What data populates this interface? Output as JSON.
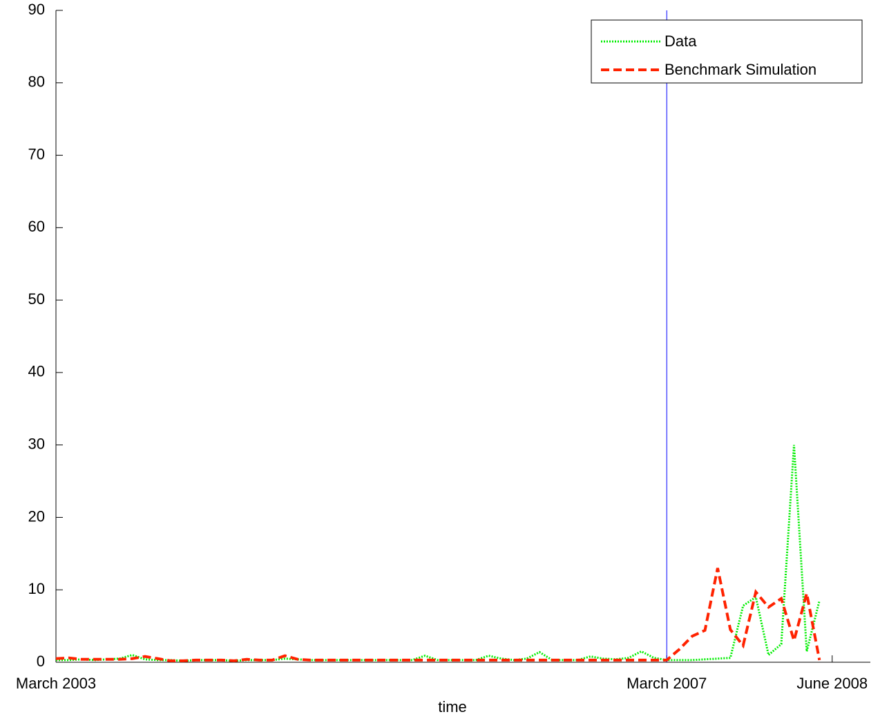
{
  "chart_data": {
    "type": "line",
    "x_label": "time",
    "x": [
      0,
      1,
      2,
      3,
      4,
      5,
      6,
      7,
      8,
      9,
      10,
      11,
      12,
      13,
      14,
      15,
      16,
      17,
      18,
      19,
      20,
      21,
      22,
      23,
      24,
      25,
      26,
      27,
      28,
      29,
      30,
      31,
      32,
      33,
      34,
      35,
      36,
      37,
      38,
      39,
      40,
      41,
      42,
      43,
      44,
      45,
      46,
      47,
      48,
      49,
      50,
      51,
      52,
      53,
      54,
      55,
      56,
      57,
      58,
      59,
      60
    ],
    "series": [
      {
        "name": "Data",
        "color": "#00ee00",
        "style": "dotted",
        "values": [
          0.3,
          0.3,
          0.4,
          0.3,
          0.4,
          0.5,
          1.0,
          0.4,
          0.3,
          0.3,
          0.2,
          0.3,
          0.3,
          0.3,
          0.2,
          0.3,
          0.3,
          0.3,
          0.5,
          0.4,
          0.3,
          0.3,
          0.3,
          0.3,
          0.3,
          0.3,
          0.3,
          0.3,
          0.3,
          0.9,
          0.3,
          0.3,
          0.3,
          0.3,
          0.9,
          0.5,
          0.3,
          0.5,
          1.4,
          0.3,
          0.3,
          0.3,
          0.8,
          0.5,
          0.4,
          0.6,
          1.5,
          0.6,
          0.3,
          0.3,
          0.3,
          0.4,
          0.5,
          0.6,
          7.8,
          9,
          1,
          2.5,
          30,
          1.5,
          8.5
        ]
      },
      {
        "name": "Benchmark Simulation",
        "color": "#ff2200",
        "style": "dashed",
        "values": [
          0.5,
          0.6,
          0.4,
          0.4,
          0.4,
          0.4,
          0.5,
          0.8,
          0.5,
          0.2,
          0.2,
          0.3,
          0.3,
          0.3,
          0.2,
          0.4,
          0.3,
          0.3,
          0.9,
          0.4,
          0.3,
          0.3,
          0.3,
          0.3,
          0.3,
          0.3,
          0.3,
          0.3,
          0.3,
          0.3,
          0.3,
          0.3,
          0.3,
          0.3,
          0.3,
          0.3,
          0.3,
          0.3,
          0.3,
          0.3,
          0.3,
          0.3,
          0.3,
          0.3,
          0.3,
          0.3,
          0.3,
          0.3,
          0.3,
          1.8,
          3.6,
          4.4,
          13,
          4.5,
          2.3,
          9.7,
          7.6,
          8.8,
          3,
          9.5,
          0.3
        ]
      }
    ],
    "xlim": [
      0,
      64
    ],
    "xticks": [
      {
        "value": 0,
        "label": "March 2003"
      },
      {
        "value": 48,
        "label": "March 2007"
      },
      {
        "value": 61,
        "label": "June 2008"
      }
    ],
    "ylim": [
      0,
      90
    ],
    "yticks": [
      0,
      10,
      20,
      30,
      40,
      50,
      60,
      70,
      80,
      90
    ],
    "vline": 48,
    "vline_color": "#0000ff",
    "legend": "upper right"
  }
}
